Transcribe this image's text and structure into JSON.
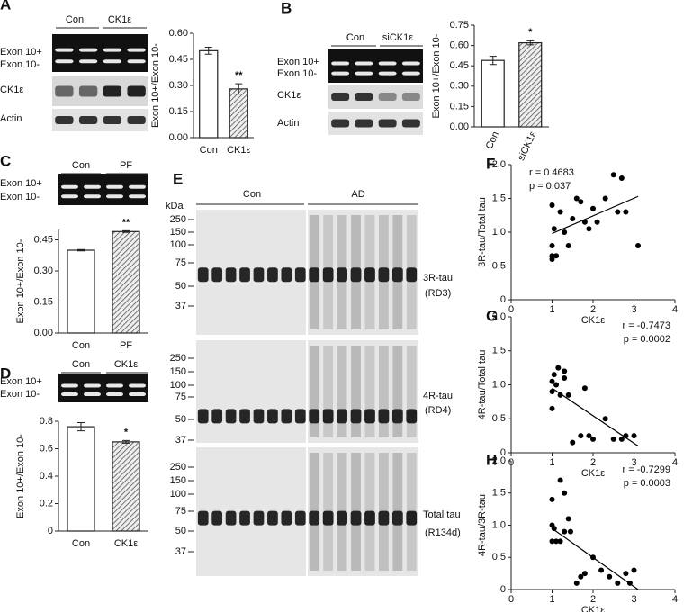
{
  "panels": {
    "A": {
      "letter": "A",
      "rows": [
        "Exon 10+",
        "Exon 10-",
        "CK1ε",
        "Actin"
      ],
      "groups": [
        "Con",
        "CK1ε"
      ]
    },
    "B": {
      "letter": "B",
      "rows": [
        "Exon 10+",
        "Exon 10-",
        "CK1ε",
        "Actin"
      ],
      "groups": [
        "Con",
        "siCK1ε"
      ]
    },
    "C": {
      "letter": "C",
      "rows": [
        "Exon 10+",
        "Exon 10-"
      ],
      "groups": [
        "Con",
        "PF"
      ]
    },
    "D": {
      "letter": "D",
      "rows": [
        "Exon 10+",
        "Exon 10-"
      ],
      "groups": [
        "Con",
        "CK1ε"
      ]
    },
    "E": {
      "letter": "E",
      "unit": "kDa",
      "groups": [
        "Con",
        "AD"
      ],
      "blots": [
        {
          "name": "3R-tau",
          "antibody": "(RD3)",
          "markers": [
            "250",
            "150",
            "100",
            "75",
            "50",
            "37"
          ]
        },
        {
          "name": "4R-tau",
          "antibody": "(RD4)",
          "markers": [
            "250",
            "150",
            "100",
            "75",
            "50",
            "37"
          ]
        },
        {
          "name": "Total tau",
          "antibody": "(R134d)",
          "markers": [
            "250",
            "150",
            "100",
            "75",
            "50",
            "37"
          ]
        }
      ]
    }
  },
  "chart_data": [
    {
      "type": "bar",
      "ylabel": "Exon 10+/Exon 10-",
      "categories": [
        "Con",
        "CK1ε"
      ],
      "values": [
        0.5,
        0.28
      ],
      "errors": [
        0.02,
        0.03
      ],
      "bar_fills": [
        "white",
        "hatched"
      ],
      "annotation": "**",
      "ylim": [
        0,
        0.6
      ],
      "yticks": [
        {
          "value": 0,
          "label": "0.00"
        },
        0.15,
        {
          "value": 0.3,
          "label": "0.30"
        },
        0.45,
        {
          "value": 0.6,
          "label": "0.60"
        }
      ]
    },
    {
      "type": "bar",
      "ylabel": "Exon 10+/Exon 10-",
      "categories": [
        "Con",
        "siCK1ε"
      ],
      "values": [
        0.49,
        0.62
      ],
      "errors": [
        0.03,
        0.015
      ],
      "bar_fills": [
        "white",
        "hatched"
      ],
      "annotation": "*",
      "rotate_xticklabels": true,
      "ylim": [
        0,
        0.75
      ],
      "yticks": [
        {
          "value": 0,
          "label": "0.00"
        },
        0.15,
        {
          "value": 0.3,
          "label": "0.30"
        },
        0.45,
        {
          "value": 0.6,
          "label": "0.60"
        },
        0.75
      ]
    },
    {
      "type": "bar",
      "ylabel": "Exon 10+/Exon 10-",
      "categories": [
        "Con",
        "PF"
      ],
      "values": [
        0.4,
        0.49
      ],
      "errors": [
        0.003,
        0.004
      ],
      "bar_fills": [
        "white",
        "hatched"
      ],
      "annotation": "**",
      "ylim": [
        0,
        0.5
      ],
      "yticks": [
        {
          "value": 0,
          "label": "0.00"
        },
        0.15,
        {
          "value": 0.3,
          "label": "0.30"
        },
        0.45
      ]
    },
    {
      "type": "bar",
      "ylabel": "Exon 10+/Exon 10-",
      "categories": [
        "Con",
        "CK1ε"
      ],
      "values": [
        0.76,
        0.65
      ],
      "errors": [
        0.03,
        0.01
      ],
      "bar_fills": [
        "white",
        "hatched"
      ],
      "annotation": "*",
      "ylim": [
        0,
        0.8
      ],
      "yticks": [
        0,
        0.2,
        0.4,
        0.6,
        0.8
      ]
    },
    {
      "type": "scatter",
      "panel": "F",
      "xlabel": "CK1ε",
      "ylabel": "3R-tau/Total tau",
      "r_text": "r = 0.4683",
      "p_text": "p = 0.037",
      "color": "#000000",
      "x": [
        1.0,
        1.0,
        1.0,
        1.05,
        1.1,
        1.2,
        1.3,
        1.4,
        1.5,
        1.6,
        1.7,
        1.8,
        1.9,
        2.0,
        2.1,
        2.3,
        2.5,
        2.6,
        2.7,
        2.8,
        3.1,
        1.0
      ],
      "y": [
        0.6,
        0.65,
        0.8,
        1.05,
        0.65,
        1.3,
        1.0,
        0.8,
        1.2,
        1.5,
        1.45,
        1.15,
        1.05,
        1.35,
        1.15,
        1.5,
        1.85,
        1.3,
        1.8,
        1.3,
        0.8,
        1.4
      ],
      "trendline": {
        "x": [
          1.0,
          3.1
        ],
        "y": [
          0.98,
          1.53
        ]
      },
      "xlim": [
        0,
        4
      ],
      "xticks": [
        0,
        1,
        2,
        3,
        4
      ],
      "ylim": [
        0,
        2
      ],
      "yticks": [
        0,
        0.5,
        {
          "value": 1,
          "label": "1.0"
        },
        1.5,
        {
          "value": 2,
          "label": "2.0"
        }
      ]
    },
    {
      "type": "scatter",
      "panel": "G",
      "xlabel": "CK1ε",
      "ylabel": "4R-tau/Total tau",
      "r_text": "r = -0.7473",
      "p_text": "p = 0.0002",
      "color": "#000000",
      "x": [
        1.0,
        1.0,
        1.0,
        1.05,
        1.1,
        1.15,
        1.2,
        1.3,
        1.4,
        1.5,
        1.7,
        1.8,
        1.9,
        2.0,
        2.3,
        2.5,
        2.7,
        2.8,
        3.0,
        1.3
      ],
      "y": [
        0.65,
        0.9,
        1.05,
        1.15,
        1.0,
        1.25,
        0.85,
        1.2,
        0.85,
        0.15,
        0.25,
        0.95,
        0.25,
        0.2,
        0.5,
        0.2,
        0.2,
        0.25,
        0.25,
        1.1
      ],
      "trendline": {
        "x": [
          1.0,
          3.1
        ],
        "y": [
          0.95,
          0.1
        ]
      },
      "xlim": [
        0,
        4
      ],
      "xticks": [
        0,
        1,
        2,
        3,
        4
      ],
      "ylim": [
        0,
        2
      ],
      "yticks": [
        0,
        0.5,
        {
          "value": 1,
          "label": "1.0"
        },
        1.5,
        {
          "value": 2,
          "label": "2.0"
        }
      ]
    },
    {
      "type": "scatter",
      "panel": "H",
      "xlabel": "CK1ε",
      "ylabel": "4R-tau/3R-tau",
      "r_text": "r = -0.7299",
      "p_text": "p = 0.0003",
      "color": "#000000",
      "x": [
        1.0,
        1.0,
        1.0,
        1.05,
        1.1,
        1.2,
        1.2,
        1.3,
        1.4,
        1.45,
        1.6,
        1.7,
        1.8,
        2.0,
        2.2,
        2.4,
        2.6,
        2.8,
        2.9,
        3.0,
        1.3
      ],
      "y": [
        1.4,
        1.0,
        0.75,
        0.95,
        0.75,
        1.7,
        0.75,
        1.5,
        1.1,
        0.9,
        0.1,
        0.2,
        0.25,
        0.5,
        0.3,
        0.2,
        0.1,
        0.25,
        0.1,
        0.3,
        0.9
      ],
      "trendline": {
        "x": [
          1.0,
          3.1
        ],
        "y": [
          0.95,
          0.0
        ]
      },
      "xlim": [
        0,
        4
      ],
      "xticks": [
        0,
        1,
        2,
        3,
        4
      ],
      "ylim": [
        0,
        2
      ],
      "yticks": [
        0,
        0.5,
        {
          "value": 1,
          "label": "1.0"
        },
        1.5,
        {
          "value": 2,
          "label": "2.0"
        }
      ]
    }
  ]
}
